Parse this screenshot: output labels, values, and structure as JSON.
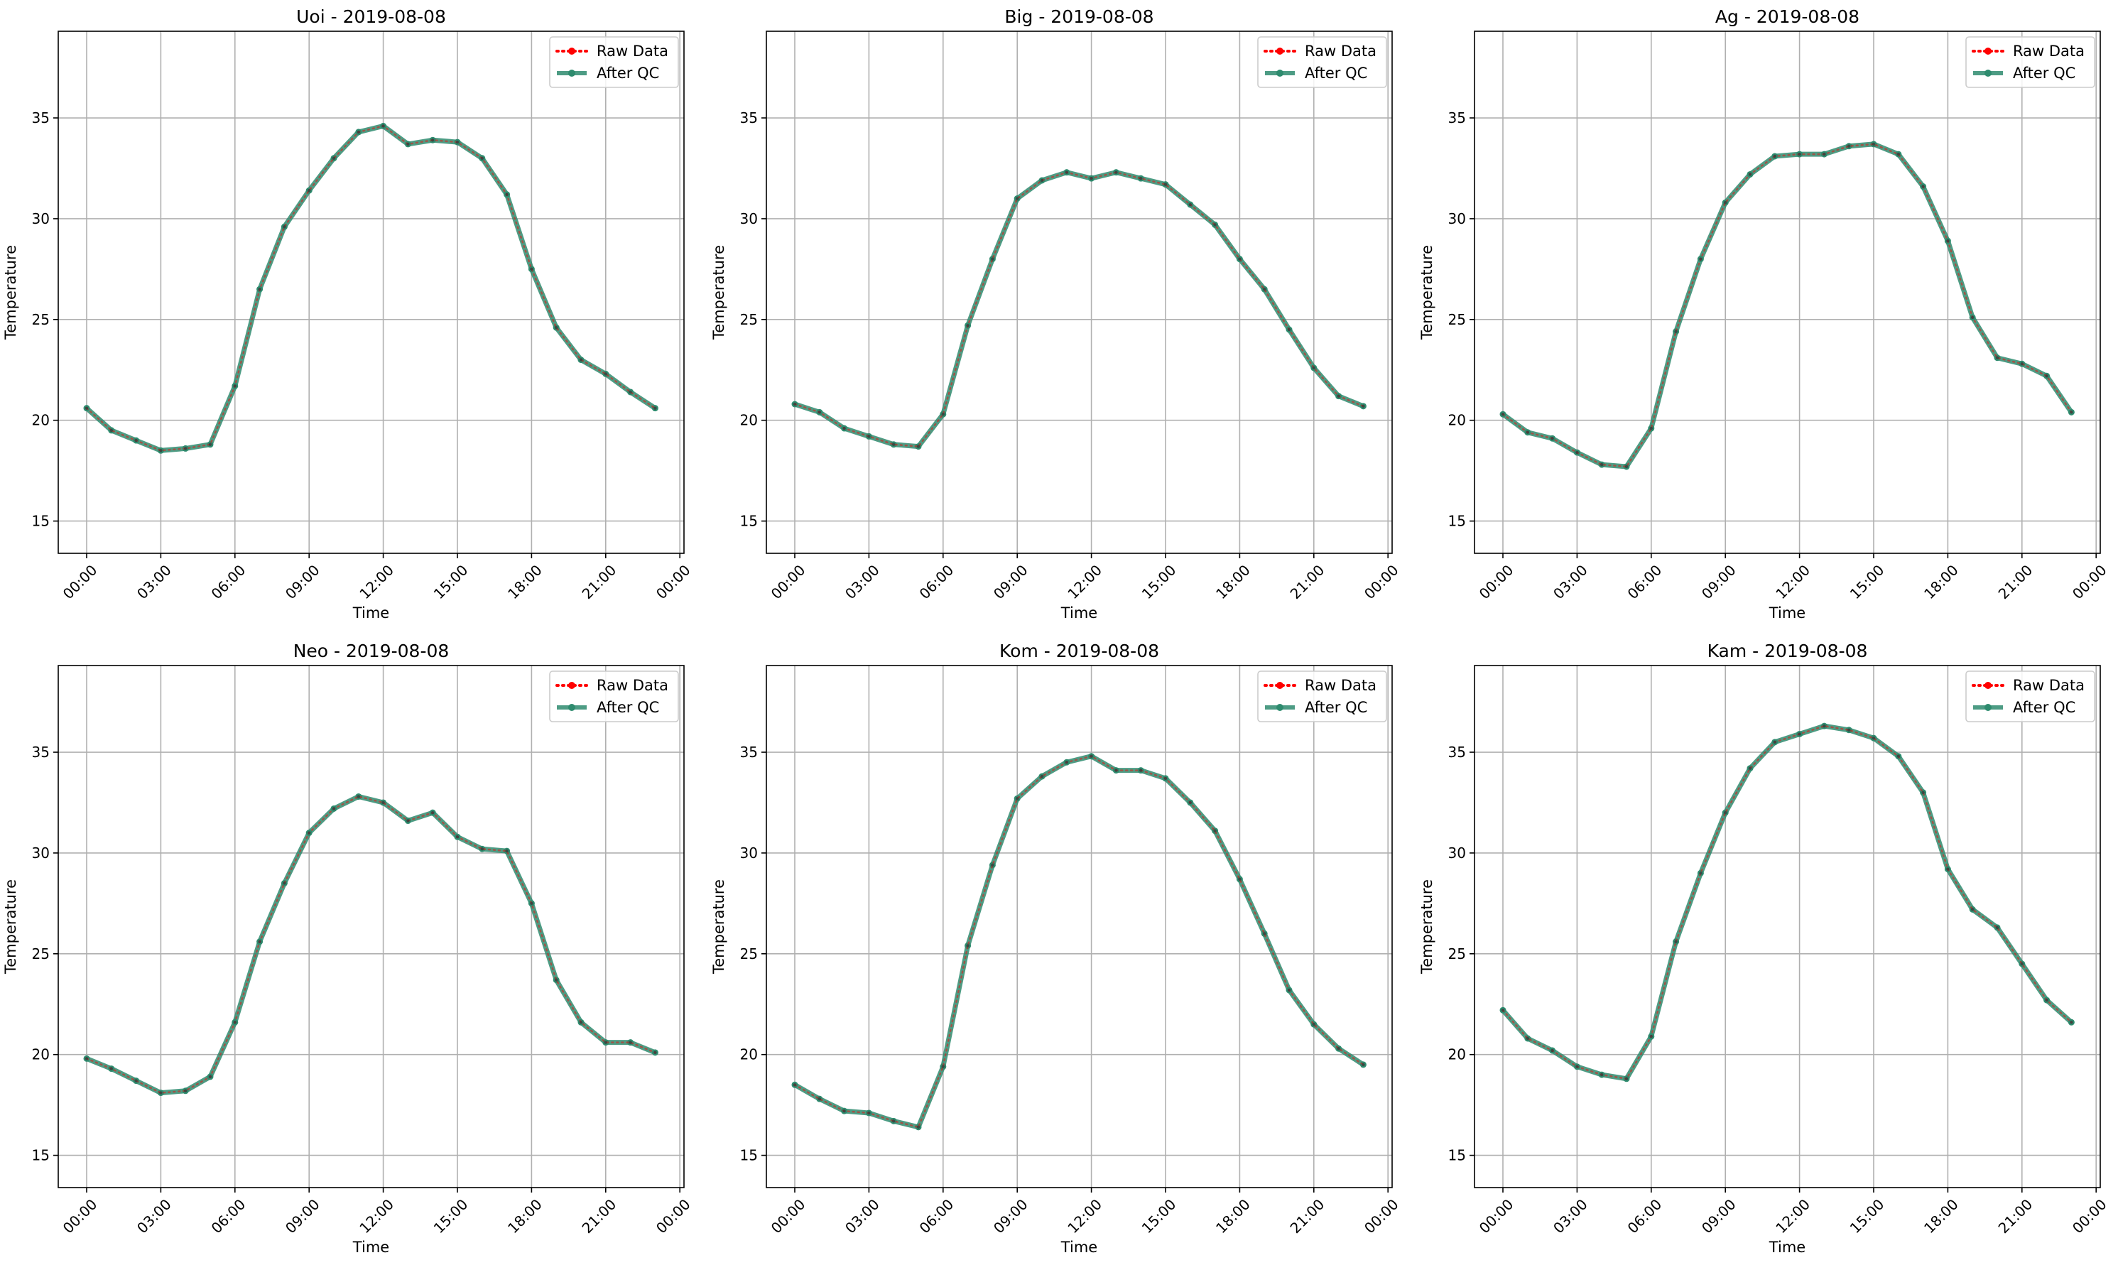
{
  "chart_data": [
    {
      "type": "line",
      "title": "Uoi - 2019-08-08",
      "xlabel": "Time",
      "ylabel": "Temperature",
      "x_tick_labels": [
        "00:00",
        "03:00",
        "06:00",
        "09:00",
        "12:00",
        "15:00",
        "18:00",
        "21:00",
        "00:00"
      ],
      "y_ticks": [
        15,
        20,
        25,
        30,
        35
      ],
      "ylim": [
        13.4,
        39.3
      ],
      "grid": true,
      "legend_position": "top-right",
      "x": [
        "00:00",
        "01:00",
        "02:00",
        "03:00",
        "04:00",
        "05:00",
        "06:00",
        "07:00",
        "08:00",
        "09:00",
        "10:00",
        "11:00",
        "12:00",
        "13:00",
        "14:00",
        "15:00",
        "16:00",
        "17:00",
        "18:00",
        "19:00",
        "20:00",
        "21:00",
        "22:00",
        "23:00"
      ],
      "series": [
        {
          "name": "Raw Data",
          "color": "#ff0000",
          "values": [
            20.6,
            19.5,
            19.0,
            18.5,
            18.6,
            18.8,
            21.7,
            26.5,
            29.6,
            31.4,
            33.0,
            34.3,
            34.6,
            33.7,
            33.9,
            33.8,
            33.0,
            31.2,
            27.5,
            24.6,
            23.0,
            22.3,
            21.4,
            20.6
          ]
        },
        {
          "name": "After QC",
          "color": "#2e8b6e",
          "values": [
            20.6,
            19.5,
            19.0,
            18.5,
            18.6,
            18.8,
            21.7,
            26.5,
            29.6,
            31.4,
            33.0,
            34.3,
            34.6,
            33.7,
            33.9,
            33.8,
            33.0,
            31.2,
            27.5,
            24.6,
            23.0,
            22.3,
            21.4,
            20.6
          ]
        }
      ]
    },
    {
      "type": "line",
      "title": "Big - 2019-08-08",
      "xlabel": "Time",
      "ylabel": "Temperature",
      "x_tick_labels": [
        "00:00",
        "03:00",
        "06:00",
        "09:00",
        "12:00",
        "15:00",
        "18:00",
        "21:00",
        "00:00"
      ],
      "y_ticks": [
        15,
        20,
        25,
        30,
        35
      ],
      "ylim": [
        13.4,
        39.3
      ],
      "grid": true,
      "legend_position": "top-right",
      "x": [
        "00:00",
        "01:00",
        "02:00",
        "03:00",
        "04:00",
        "05:00",
        "06:00",
        "07:00",
        "08:00",
        "09:00",
        "10:00",
        "11:00",
        "12:00",
        "13:00",
        "14:00",
        "15:00",
        "16:00",
        "17:00",
        "18:00",
        "19:00",
        "20:00",
        "21:00",
        "22:00",
        "23:00"
      ],
      "series": [
        {
          "name": "Raw Data",
          "color": "#ff0000",
          "values": [
            20.8,
            20.4,
            19.6,
            19.2,
            18.8,
            18.7,
            20.3,
            24.7,
            28.0,
            31.0,
            31.9,
            32.3,
            32.0,
            32.3,
            32.0,
            31.7,
            30.7,
            29.7,
            28.0,
            26.5,
            24.5,
            22.6,
            21.2,
            20.7
          ]
        },
        {
          "name": "After QC",
          "color": "#2e8b6e",
          "values": [
            20.8,
            20.4,
            19.6,
            19.2,
            18.8,
            18.7,
            20.3,
            24.7,
            28.0,
            31.0,
            31.9,
            32.3,
            32.0,
            32.3,
            32.0,
            31.7,
            30.7,
            29.7,
            28.0,
            26.5,
            24.5,
            22.6,
            21.2,
            20.7
          ]
        }
      ]
    },
    {
      "type": "line",
      "title": "Ag - 2019-08-08",
      "xlabel": "Time",
      "ylabel": "Temperature",
      "x_tick_labels": [
        "00:00",
        "03:00",
        "06:00",
        "09:00",
        "12:00",
        "15:00",
        "18:00",
        "21:00",
        "00:00"
      ],
      "y_ticks": [
        15,
        20,
        25,
        30,
        35
      ],
      "ylim": [
        13.4,
        39.3
      ],
      "grid": true,
      "legend_position": "top-right",
      "x": [
        "00:00",
        "01:00",
        "02:00",
        "03:00",
        "04:00",
        "05:00",
        "06:00",
        "07:00",
        "08:00",
        "09:00",
        "10:00",
        "11:00",
        "12:00",
        "13:00",
        "14:00",
        "15:00",
        "16:00",
        "17:00",
        "18:00",
        "19:00",
        "20:00",
        "21:00",
        "22:00",
        "23:00"
      ],
      "series": [
        {
          "name": "Raw Data",
          "color": "#ff0000",
          "values": [
            20.3,
            19.4,
            19.1,
            18.4,
            17.8,
            17.7,
            19.6,
            24.4,
            28.0,
            30.8,
            32.2,
            33.1,
            33.2,
            33.2,
            33.6,
            33.7,
            33.2,
            31.6,
            28.9,
            25.1,
            23.1,
            22.8,
            22.2,
            20.4
          ]
        },
        {
          "name": "After QC",
          "color": "#2e8b6e",
          "values": [
            20.3,
            19.4,
            19.1,
            18.4,
            17.8,
            17.7,
            19.6,
            24.4,
            28.0,
            30.8,
            32.2,
            33.1,
            33.2,
            33.2,
            33.6,
            33.7,
            33.2,
            31.6,
            28.9,
            25.1,
            23.1,
            22.8,
            22.2,
            20.4
          ]
        }
      ]
    },
    {
      "type": "line",
      "title": "Neo - 2019-08-08",
      "xlabel": "Time",
      "ylabel": "Temperature",
      "x_tick_labels": [
        "00:00",
        "03:00",
        "06:00",
        "09:00",
        "12:00",
        "15:00",
        "18:00",
        "21:00",
        "00:00"
      ],
      "y_ticks": [
        15,
        20,
        25,
        30,
        35
      ],
      "ylim": [
        13.4,
        39.3
      ],
      "grid": true,
      "legend_position": "top-right",
      "x": [
        "00:00",
        "01:00",
        "02:00",
        "03:00",
        "04:00",
        "05:00",
        "06:00",
        "07:00",
        "08:00",
        "09:00",
        "10:00",
        "11:00",
        "12:00",
        "13:00",
        "14:00",
        "15:00",
        "16:00",
        "17:00",
        "18:00",
        "19:00",
        "20:00",
        "21:00",
        "22:00",
        "23:00"
      ],
      "series": [
        {
          "name": "Raw Data",
          "color": "#ff0000",
          "values": [
            19.8,
            19.3,
            18.7,
            18.1,
            18.2,
            18.9,
            21.6,
            25.6,
            28.5,
            31.0,
            32.2,
            32.8,
            32.5,
            31.6,
            32.0,
            30.8,
            30.2,
            30.1,
            27.5,
            23.7,
            21.6,
            20.6,
            20.6,
            20.1
          ]
        },
        {
          "name": "After QC",
          "color": "#2e8b6e",
          "values": [
            19.8,
            19.3,
            18.7,
            18.1,
            18.2,
            18.9,
            21.6,
            25.6,
            28.5,
            31.0,
            32.2,
            32.8,
            32.5,
            31.6,
            32.0,
            30.8,
            30.2,
            30.1,
            27.5,
            23.7,
            21.6,
            20.6,
            20.6,
            20.1
          ]
        }
      ]
    },
    {
      "type": "line",
      "title": "Kom - 2019-08-08",
      "xlabel": "Time",
      "ylabel": "Temperature",
      "x_tick_labels": [
        "00:00",
        "03:00",
        "06:00",
        "09:00",
        "12:00",
        "15:00",
        "18:00",
        "21:00",
        "00:00"
      ],
      "y_ticks": [
        15,
        20,
        25,
        30,
        35
      ],
      "ylim": [
        13.4,
        39.3
      ],
      "grid": true,
      "legend_position": "top-right",
      "x": [
        "00:00",
        "01:00",
        "02:00",
        "03:00",
        "04:00",
        "05:00",
        "06:00",
        "07:00",
        "08:00",
        "09:00",
        "10:00",
        "11:00",
        "12:00",
        "13:00",
        "14:00",
        "15:00",
        "16:00",
        "17:00",
        "18:00",
        "19:00",
        "20:00",
        "21:00",
        "22:00",
        "23:00"
      ],
      "series": [
        {
          "name": "Raw Data",
          "color": "#ff0000",
          "values": [
            18.5,
            17.8,
            17.2,
            17.1,
            16.7,
            16.4,
            19.4,
            25.4,
            29.4,
            32.7,
            33.8,
            34.5,
            34.8,
            34.1,
            34.1,
            33.7,
            32.5,
            31.1,
            28.7,
            26.0,
            23.2,
            21.5,
            20.3,
            19.5
          ]
        },
        {
          "name": "After QC",
          "color": "#2e8b6e",
          "values": [
            18.5,
            17.8,
            17.2,
            17.1,
            16.7,
            16.4,
            19.4,
            25.4,
            29.4,
            32.7,
            33.8,
            34.5,
            34.8,
            34.1,
            34.1,
            33.7,
            32.5,
            31.1,
            28.7,
            26.0,
            23.2,
            21.5,
            20.3,
            19.5
          ]
        }
      ]
    },
    {
      "type": "line",
      "title": "Kam - 2019-08-08",
      "xlabel": "Time",
      "ylabel": "Temperature",
      "x_tick_labels": [
        "00:00",
        "03:00",
        "06:00",
        "09:00",
        "12:00",
        "15:00",
        "18:00",
        "21:00",
        "00:00"
      ],
      "y_ticks": [
        15,
        20,
        25,
        30,
        35
      ],
      "ylim": [
        13.4,
        39.3
      ],
      "grid": true,
      "legend_position": "top-right",
      "x": [
        "00:00",
        "01:00",
        "02:00",
        "03:00",
        "04:00",
        "05:00",
        "06:00",
        "07:00",
        "08:00",
        "09:00",
        "10:00",
        "11:00",
        "12:00",
        "13:00",
        "14:00",
        "15:00",
        "16:00",
        "17:00",
        "18:00",
        "19:00",
        "20:00",
        "21:00",
        "22:00",
        "23:00"
      ],
      "series": [
        {
          "name": "Raw Data",
          "color": "#ff0000",
          "values": [
            22.2,
            20.8,
            20.2,
            19.4,
            19.0,
            18.8,
            20.9,
            25.6,
            29.0,
            32.0,
            34.2,
            35.5,
            35.9,
            36.3,
            36.1,
            35.7,
            34.8,
            33.0,
            29.2,
            27.2,
            26.3,
            24.5,
            22.7,
            21.6
          ]
        },
        {
          "name": "After QC",
          "color": "#2e8b6e",
          "values": [
            22.2,
            20.8,
            20.2,
            19.4,
            19.0,
            18.8,
            20.9,
            25.6,
            29.0,
            32.0,
            34.2,
            35.5,
            35.9,
            36.3,
            36.1,
            35.7,
            34.8,
            33.0,
            29.2,
            27.2,
            26.3,
            24.5,
            22.7,
            21.6
          ]
        }
      ]
    }
  ]
}
